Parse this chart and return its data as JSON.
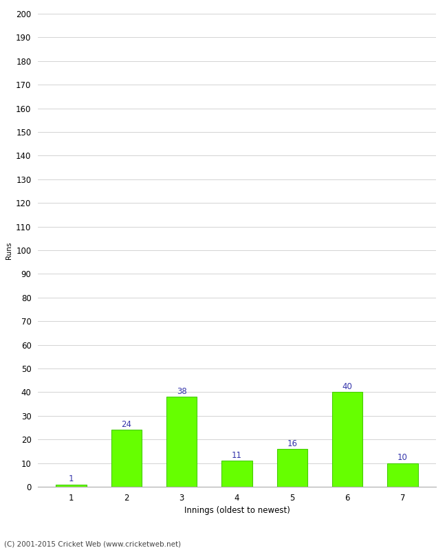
{
  "categories": [
    "1",
    "2",
    "3",
    "4",
    "5",
    "6",
    "7"
  ],
  "values": [
    1,
    24,
    38,
    11,
    16,
    40,
    10
  ],
  "bar_color": "#66ff00",
  "bar_edge_color": "#44cc00",
  "xlabel": "Innings (oldest to newest)",
  "ylabel": "Runs",
  "ylim": [
    0,
    200
  ],
  "yticks": [
    0,
    10,
    20,
    30,
    40,
    50,
    60,
    70,
    80,
    90,
    100,
    110,
    120,
    130,
    140,
    150,
    160,
    170,
    180,
    190,
    200
  ],
  "value_label_color": "#3333aa",
  "value_label_fontsize": 8.5,
  "footer": "(C) 2001-2015 Cricket Web (www.cricketweb.net)",
  "background_color": "#ffffff",
  "grid_color": "#cccccc",
  "ylabel_fontsize": 7.5,
  "xlabel_fontsize": 8.5,
  "tick_fontsize": 8.5,
  "footer_fontsize": 7.5
}
